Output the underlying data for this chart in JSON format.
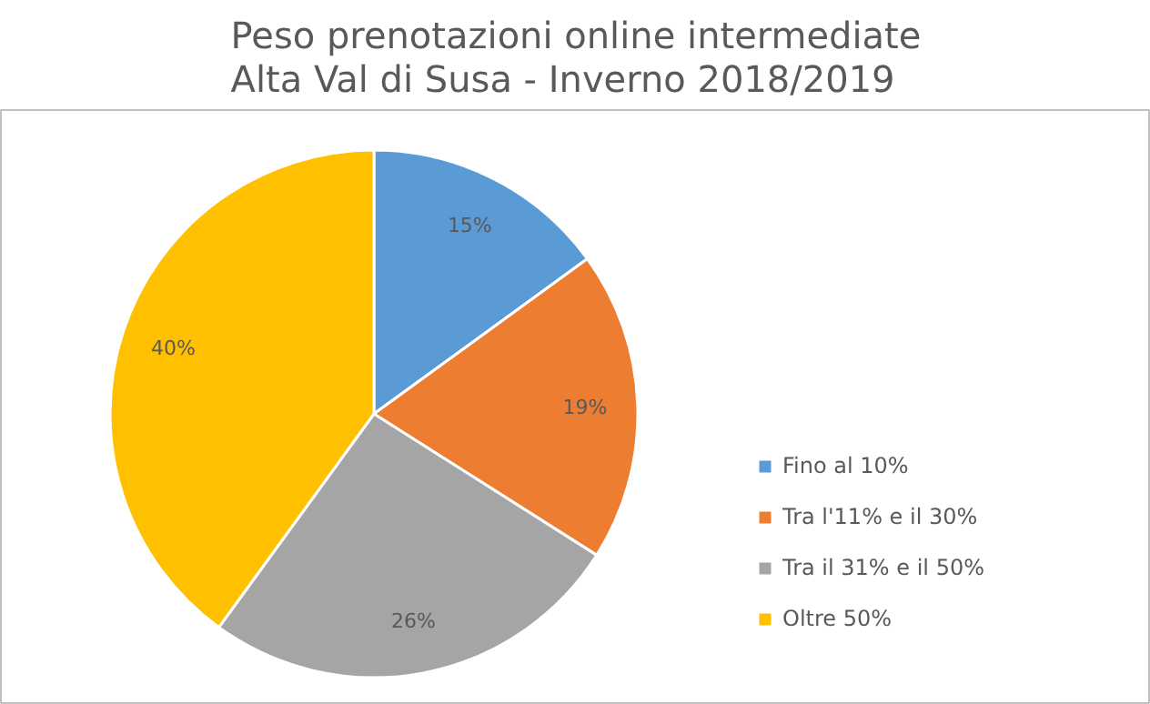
{
  "chart_data": {
    "type": "pie",
    "title": "Peso prenotazioni online intermediate\nAlta Val di Susa - Inverno 2018/2019",
    "categories": [
      "Fino al 10%",
      "Tra l'11% e il 30%",
      "Tra il 31% e il 50%",
      "Oltre 50%"
    ],
    "values": [
      15,
      19,
      26,
      40
    ],
    "value_labels": [
      "15%",
      "19%",
      "26%",
      "40%"
    ],
    "colors": [
      "#5b9bd5",
      "#ed7d31",
      "#a5a5a5",
      "#ffc000"
    ],
    "legend": "right"
  }
}
